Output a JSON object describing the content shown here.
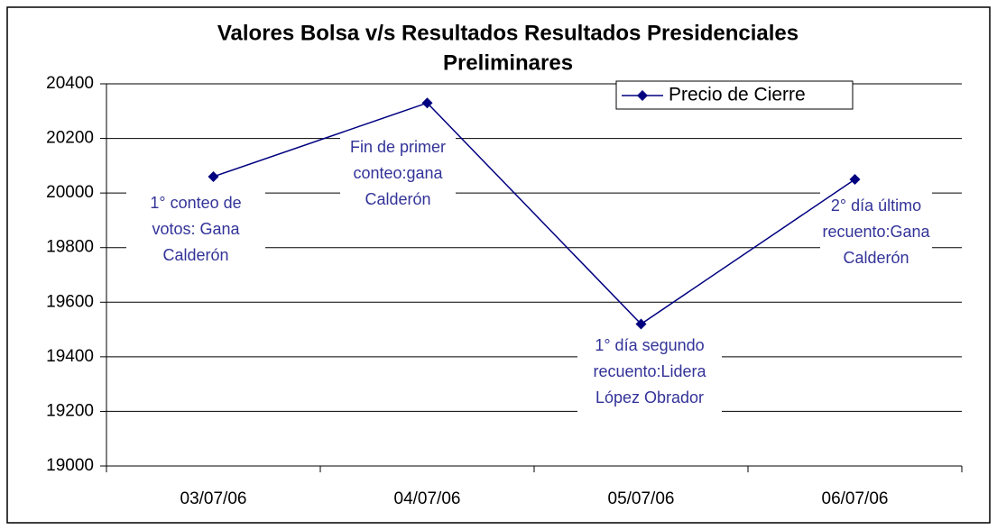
{
  "chart_data": {
    "type": "line",
    "title": [
      "Valores Bolsa v/s Resultados Resultados Presidenciales",
      "Preliminares"
    ],
    "categories": [
      "03/07/06",
      "04/07/06",
      "05/07/06",
      "06/07/06"
    ],
    "series": [
      {
        "name": "Precio de Cierre",
        "color": "#000080",
        "values": [
          20060,
          20330,
          19520,
          20050
        ]
      }
    ],
    "ylim": [
      19000,
      20400
    ],
    "yticks": [
      19000,
      19200,
      19400,
      19600,
      19800,
      20000,
      20200,
      20400
    ],
    "grid": true,
    "legend": "top-right",
    "annotations": [
      {
        "lines": [
          "1° conteo de",
          "votos: Gana",
          "Calderón"
        ]
      },
      {
        "lines": [
          "Fin de primer",
          "conteo:gana",
          "Calderón"
        ]
      },
      {
        "lines": [
          "1° día segundo",
          "recuento:Lidera",
          "López Obrador"
        ]
      },
      {
        "lines": [
          "2° día último",
          "recuento:Gana",
          "Calderón"
        ]
      }
    ]
  }
}
